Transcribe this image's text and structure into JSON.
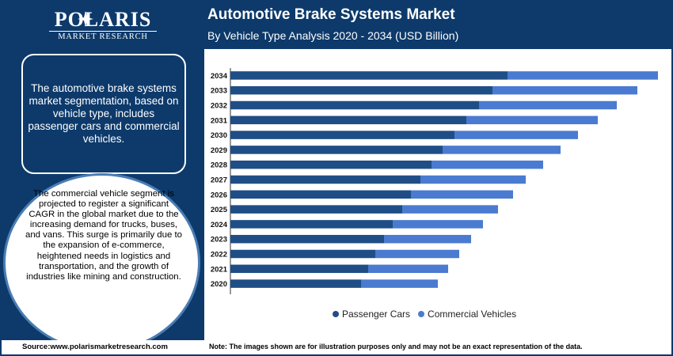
{
  "brand": {
    "name": "POLARIS",
    "tagline": "MARKET RESEARCH"
  },
  "header": {
    "title": "Automotive Brake Systems Market",
    "subtitle": "By Vehicle Type Analysis 2020 - 2034 (USD Billion)"
  },
  "sidebar": {
    "intro": "The automotive brake systems market segmentation, based on vehicle type, includes passenger cars and commercial vehicles.",
    "highlight": "The commercial vehicle segment is projected to register a significant CAGR in the global market due to the increasing demand for trucks, buses, and vans. This surge is primarily due to the expansion of e-commerce, heightened needs in logistics and transportation, and the growth of industries like mining and construction."
  },
  "footer": {
    "source": "Source:www.polarismarketresearch.com",
    "note": "Note: The images shown are for illustration purposes only and may not be an exact representation of the data."
  },
  "colors": {
    "brand_navy": "#0d3a6b",
    "passenger_cars": "#1f4e86",
    "commercial_vehicles": "#4a7bd0"
  },
  "chart_data": {
    "type": "bar",
    "orientation": "horizontal",
    "stacked": true,
    "categories": [
      "2034",
      "2033",
      "2032",
      "2031",
      "2030",
      "2029",
      "2028",
      "2027",
      "2026",
      "2025",
      "2024",
      "2023",
      "2022",
      "2021",
      "2020"
    ],
    "series": [
      {
        "name": "Passenger Cars",
        "color": "#1f4e86",
        "values": [
          35.0,
          33.1,
          31.4,
          29.8,
          28.3,
          26.8,
          25.4,
          24.0,
          22.8,
          21.7,
          20.5,
          19.4,
          18.3,
          17.4,
          16.5
        ]
      },
      {
        "name": "Commercial Vehicles",
        "color": "#4a7bd0",
        "values": [
          19.0,
          18.3,
          17.4,
          16.6,
          15.6,
          14.9,
          14.1,
          13.3,
          12.9,
          12.1,
          11.4,
          11.0,
          10.6,
          10.1,
          9.7
        ]
      }
    ],
    "xlim": [
      0,
      54
    ],
    "axis_labels_shown": false,
    "grid": false,
    "legend": "bottom"
  }
}
